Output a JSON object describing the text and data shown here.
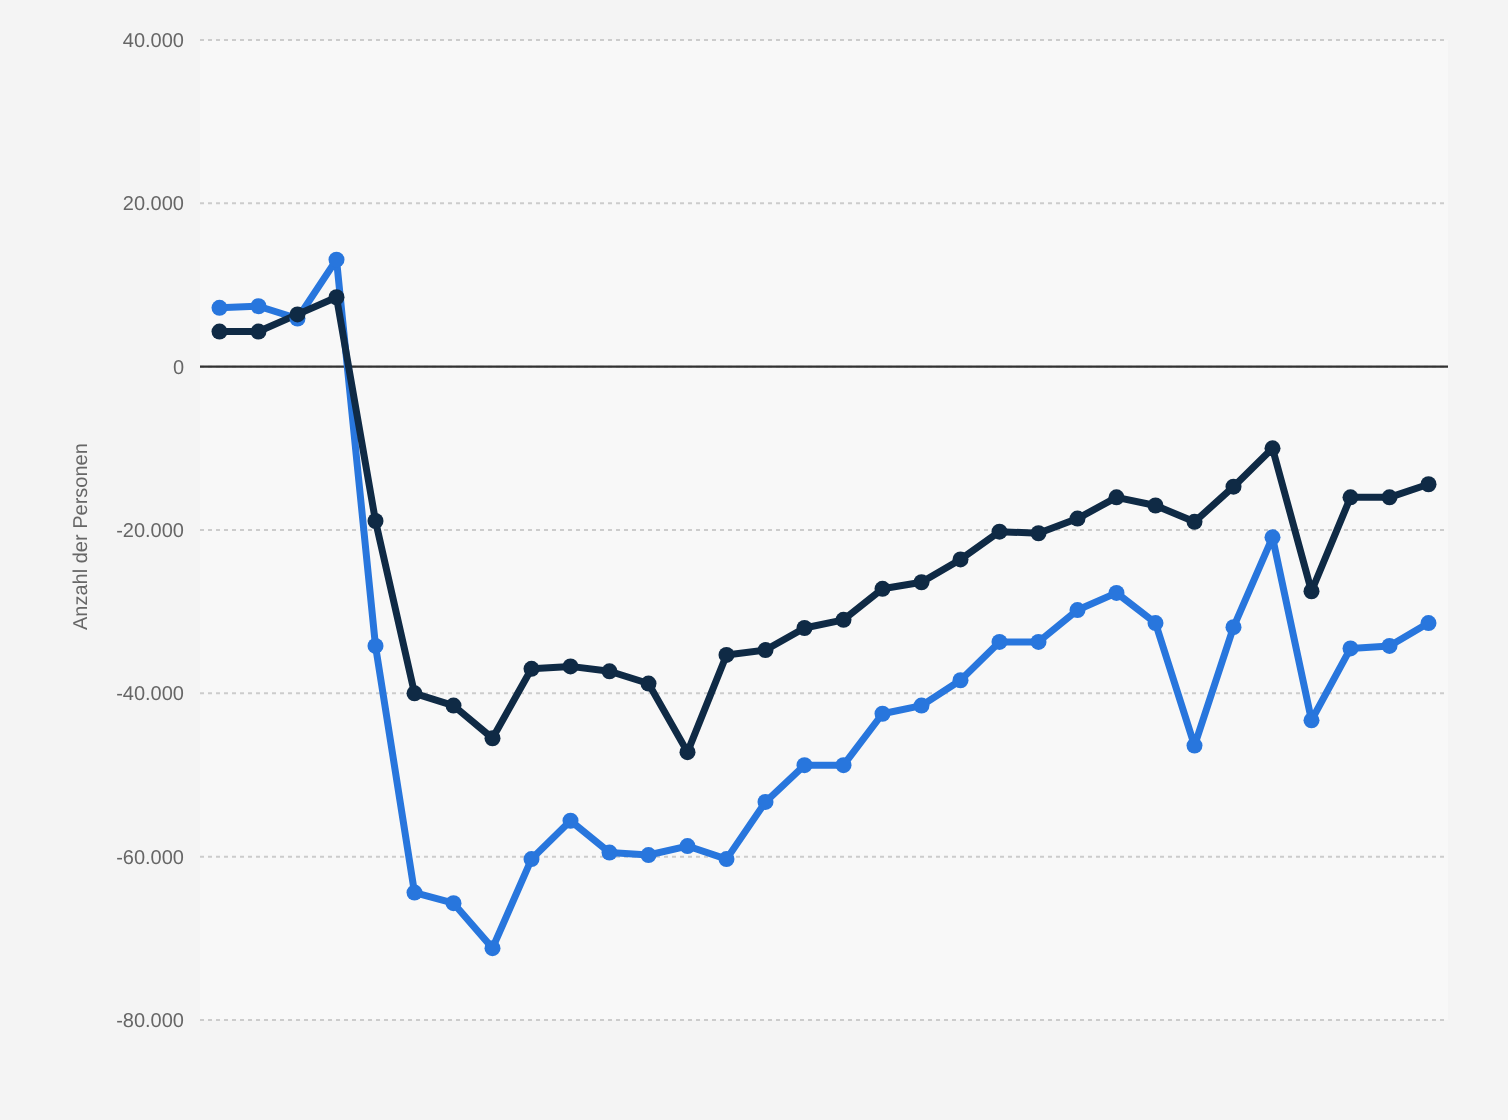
{
  "chart_data": {
    "type": "line",
    "ylabel": "Anzahl der Personen",
    "categories": [
      null,
      null,
      null,
      null,
      null,
      null,
      null,
      null,
      null,
      null,
      null,
      null,
      null,
      null,
      null,
      null,
      null,
      null,
      null,
      null,
      null,
      null,
      null,
      null,
      null,
      null,
      null,
      null,
      null,
      null,
      null,
      null
    ],
    "series": [
      {
        "color": "#0f2a45",
        "values": [
          4300,
          4300,
          6400,
          8500,
          -18900,
          -40000,
          -41500,
          -45500,
          -37000,
          -36700,
          -37300,
          -38800,
          -47200,
          -35300,
          -34700,
          -32000,
          -31000,
          -27200,
          -26400,
          -23600,
          -20200,
          -20400,
          -18600,
          -16000,
          -17000,
          -19000,
          -14700,
          -10000,
          -27500,
          -16000,
          -16000,
          -14400
        ]
      },
      {
        "color": "#2876dd",
        "values": [
          7200,
          7400,
          5900,
          13100,
          -34200,
          -64400,
          -65700,
          -71200,
          -60300,
          -55600,
          -59500,
          -59800,
          -58700,
          -60300,
          -53300,
          -48800,
          -48800,
          -42500,
          -41500,
          -38400,
          -33700,
          -33700,
          -29800,
          -27700,
          -31400,
          -46400,
          -31900,
          -20900,
          -43300,
          -34500,
          -34200,
          -31400
        ]
      }
    ],
    "ylim": [
      -80000,
      40000
    ],
    "yticks": [
      {
        "value": -80000,
        "label": "-80.000"
      },
      {
        "value": -60000,
        "label": "-60.000"
      },
      {
        "value": -40000,
        "label": "-40.000"
      },
      {
        "value": -20000,
        "label": "-20.000"
      },
      0,
      {
        "value": 20000,
        "label": "20.000"
      },
      {
        "value": 40000,
        "label": "40.000"
      }
    ],
    "ref_lines": [
      {
        "axis": "y",
        "value": 0,
        "color": "#333333"
      }
    ],
    "grid": "y",
    "legend": false,
    "marker": "circle",
    "line_style": "solid"
  }
}
